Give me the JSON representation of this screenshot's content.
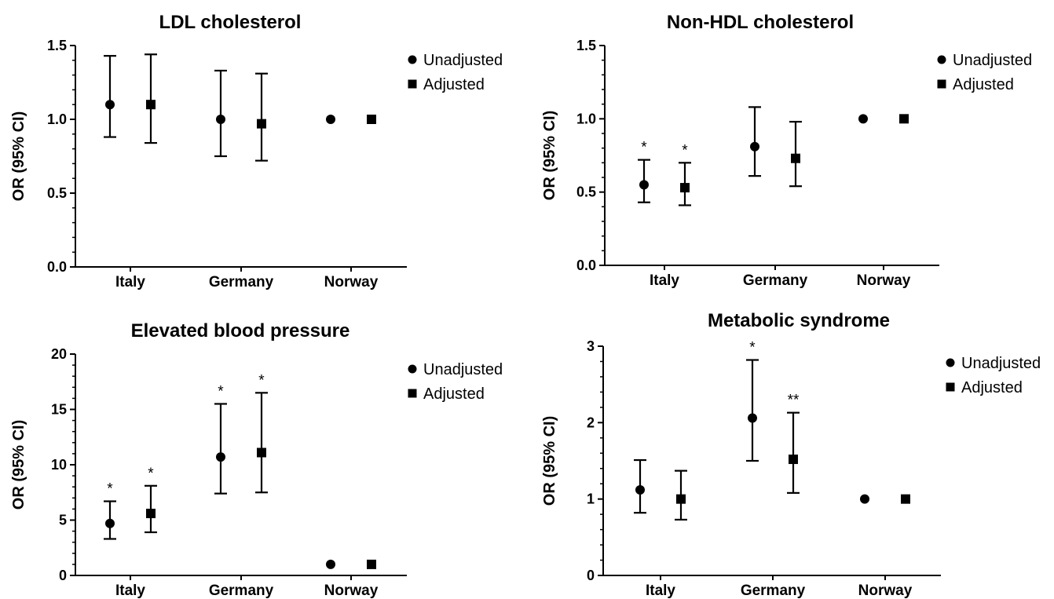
{
  "chart_data": [
    {
      "type": "scatter",
      "title": "LDL cholesterol",
      "ylabel": "OR (95% CI)",
      "categories": [
        "Italy",
        "Germany",
        "Norway"
      ],
      "ylim": [
        0,
        1.5
      ],
      "yticks": [
        0,
        0.5,
        1.0,
        1.5
      ],
      "ytick_labels": [
        "0.0",
        "0.5",
        "1.0",
        "1.5"
      ],
      "minor_ticks_per_interval": 5,
      "legend_position": "top-right",
      "series": [
        {
          "name": "Unadjusted",
          "marker": "circle",
          "values": [
            1.1,
            1.0,
            1.0
          ],
          "lower": [
            0.88,
            0.75,
            null
          ],
          "upper": [
            1.43,
            1.33,
            null
          ],
          "annotations": [
            "",
            "",
            ""
          ]
        },
        {
          "name": "Adjusted",
          "marker": "square",
          "values": [
            1.1,
            0.97,
            1.0
          ],
          "lower": [
            0.84,
            0.72,
            null
          ],
          "upper": [
            1.44,
            1.31,
            null
          ],
          "annotations": [
            "",
            "",
            ""
          ]
        }
      ]
    },
    {
      "type": "scatter",
      "title": "Non-HDL cholesterol",
      "ylabel": "OR (95% CI)",
      "categories": [
        "Italy",
        "Germany",
        "Norway"
      ],
      "ylim": [
        0,
        1.5
      ],
      "yticks": [
        0,
        0.5,
        1.0,
        1.5
      ],
      "ytick_labels": [
        "0.0",
        "0.5",
        "1.0",
        "1.5"
      ],
      "minor_ticks_per_interval": 5,
      "legend_position": "top-right",
      "series": [
        {
          "name": "Unadjusted",
          "marker": "circle",
          "values": [
            0.55,
            0.81,
            1.0
          ],
          "lower": [
            0.43,
            0.61,
            null
          ],
          "upper": [
            0.72,
            1.08,
            null
          ],
          "annotations": [
            "*",
            "",
            ""
          ]
        },
        {
          "name": "Adjusted",
          "marker": "square",
          "values": [
            0.53,
            0.73,
            1.0
          ],
          "lower": [
            0.41,
            0.54,
            null
          ],
          "upper": [
            0.7,
            0.98,
            null
          ],
          "annotations": [
            "*",
            "",
            ""
          ]
        }
      ]
    },
    {
      "type": "scatter",
      "title": "Elevated blood pressure",
      "ylabel": "OR (95% CI)",
      "categories": [
        "Italy",
        "Germany",
        "Norway"
      ],
      "ylim": [
        0,
        20
      ],
      "yticks": [
        0,
        5,
        10,
        15,
        20
      ],
      "ytick_labels": [
        "0",
        "5",
        "10",
        "15",
        "20"
      ],
      "minor_ticks_per_interval": 5,
      "legend_position": "top-right",
      "series": [
        {
          "name": "Unadjusted",
          "marker": "circle",
          "values": [
            4.7,
            10.7,
            1.0
          ],
          "lower": [
            3.3,
            7.4,
            null
          ],
          "upper": [
            6.7,
            15.5,
            null
          ],
          "annotations": [
            "*",
            "*",
            ""
          ]
        },
        {
          "name": "Adjusted",
          "marker": "square",
          "values": [
            5.6,
            11.1,
            1.0
          ],
          "lower": [
            3.9,
            7.5,
            null
          ],
          "upper": [
            8.1,
            16.5,
            null
          ],
          "annotations": [
            "*",
            "*",
            ""
          ]
        }
      ]
    },
    {
      "type": "scatter",
      "title": "Metabolic syndrome",
      "ylabel": "OR (95% CI)",
      "categories": [
        "Italy",
        "Germany",
        "Norway"
      ],
      "ylim": [
        0,
        3
      ],
      "yticks": [
        0,
        1,
        2,
        3
      ],
      "ytick_labels": [
        "0",
        "1",
        "2",
        "3"
      ],
      "minor_ticks_per_interval": 5,
      "legend_position": "top-right",
      "series": [
        {
          "name": "Unadjusted",
          "marker": "circle",
          "values": [
            1.12,
            2.06,
            1.0
          ],
          "lower": [
            0.82,
            1.5,
            null
          ],
          "upper": [
            1.51,
            2.82,
            null
          ],
          "annotations": [
            "",
            "*",
            ""
          ]
        },
        {
          "name": "Adjusted",
          "marker": "square",
          "values": [
            1.0,
            1.52,
            1.0
          ],
          "lower": [
            0.73,
            1.08,
            null
          ],
          "upper": [
            1.37,
            2.13,
            null
          ],
          "annotations": [
            "",
            "**",
            ""
          ]
        }
      ]
    }
  ]
}
